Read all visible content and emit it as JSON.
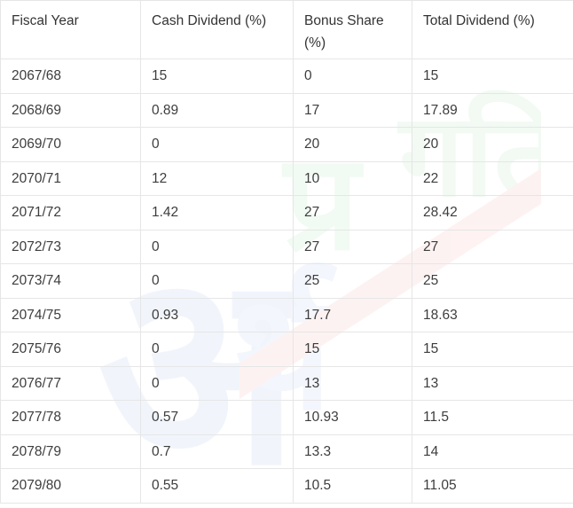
{
  "table": {
    "headers": [
      "Fiscal Year",
      "Cash Dividend (%)",
      "Bonus Share (%)",
      "Total Dividend  (%)"
    ],
    "rows": [
      [
        "2067/68",
        "15",
        "0",
        "15"
      ],
      [
        "2068/69",
        "0.89",
        "17",
        "17.89"
      ],
      [
        "2069/70",
        "0",
        "20",
        "20"
      ],
      [
        "2070/71",
        "12",
        "10",
        "22"
      ],
      [
        "2071/72",
        "1.42",
        "27",
        "28.42"
      ],
      [
        "2072/73",
        "0",
        "27",
        "27"
      ],
      [
        "2073/74",
        "0",
        "25",
        "25"
      ],
      [
        "2074/75",
        "0.93",
        "17.7",
        "18.63"
      ],
      [
        "2075/76",
        "0",
        "15",
        "15"
      ],
      [
        "2076/77",
        "0",
        "13",
        "13"
      ],
      [
        "2077/78",
        "0.57",
        "10.93",
        "11.5"
      ],
      [
        "2078/79",
        "0.7",
        "13.3",
        "14"
      ],
      [
        "2079/80",
        "0.55",
        "10.5",
        "11.05"
      ]
    ]
  },
  "watermark": {
    "text": "अर्थ प्रगति",
    "colors": [
      "#dfe8f7",
      "#e3f4e6",
      "#fbe3e3"
    ]
  }
}
